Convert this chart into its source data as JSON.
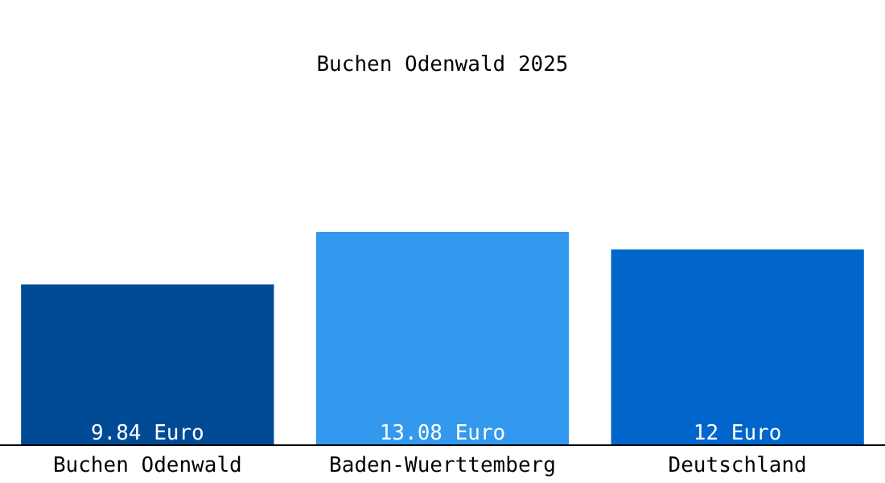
{
  "chart_data": {
    "type": "bar",
    "title": "Buchen Odenwald 2025",
    "categories": [
      "Buchen Odenwald",
      "Baden-Wuerttemberg",
      "Deutschland"
    ],
    "values": [
      9.84,
      13.08,
      12
    ],
    "colors": [
      "#004a96",
      "#3399ee",
      "#0066cc"
    ],
    "value_labels": [
      "9.84 Euro",
      "13.08 Euro",
      "12 Euro"
    ]
  }
}
